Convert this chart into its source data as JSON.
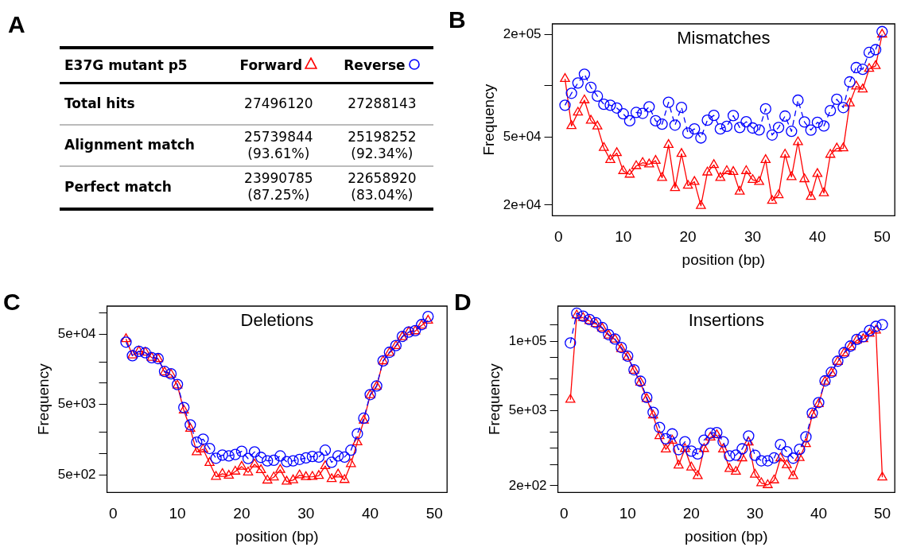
{
  "chart_data": [
    {
      "type": "other",
      "annotations": [
        "A",
        "E37G mutant p5",
        "Forward",
        "Reverse",
        "Total hits",
        "27496120",
        "27288143",
        "Alignment match",
        "25739844\n(93.61%)",
        "25198252\n(92.34%)",
        "Perfect match",
        "23990785\n(87.25%)",
        "22658920\n(83.04%)"
      ]
    },
    {
      "type": "line",
      "title": "Mismatches",
      "xlabel": "position (bp)",
      "ylabel": "Frequency",
      "annotations": [
        "B"
      ],
      "log": "y",
      "x": [
        1,
        2,
        3,
        4,
        5,
        6,
        7,
        8,
        9,
        10,
        11,
        12,
        13,
        14,
        15,
        16,
        17,
        18,
        19,
        20,
        21,
        22,
        23,
        24,
        25,
        26,
        27,
        28,
        29,
        30,
        31,
        32,
        33,
        34,
        35,
        36,
        37,
        38,
        39,
        40,
        41,
        42,
        43,
        44,
        45,
        46,
        47,
        48,
        49,
        50
      ],
      "xlim": [
        -0.96,
        51.96
      ],
      "xticks": [
        0,
        10,
        20,
        30,
        40,
        50
      ],
      "ylim": [
        17300,
        231000
      ],
      "yticks": [
        {
          "value": 20000,
          "label": "2e+04"
        },
        {
          "value": 50000,
          "label": "5e+04"
        },
        {
          "value": 100000,
          "label": null
        },
        {
          "value": 200000,
          "label": "2e+05"
        }
      ],
      "series": [
        {
          "color": "#0000ff",
          "marker": "circle",
          "line_style": "dashed",
          "values": [
            77000,
            90500,
            104000,
            117000,
            98000,
            87000,
            78000,
            77000,
            74200,
            68500,
            62400,
            69800,
            69000,
            75400,
            62400,
            59600,
            80100,
            58900,
            74800,
            52800,
            55900,
            49500,
            62900,
            67100,
            55900,
            57900,
            66900,
            57000,
            61600,
            56600,
            55200,
            73300,
            51500,
            57000,
            66500,
            54100,
            82400,
            61400,
            55000,
            61100,
            58200,
            71600,
            83400,
            74600,
            105500,
            128000,
            125000,
            157000,
            163000,
            208000
          ]
        },
        {
          "color": "#ff0000",
          "marker": "triangle",
          "line_style": "solid",
          "values": [
            110000,
            58200,
            69800,
            82400,
            62600,
            57900,
            43300,
            36800,
            40400,
            31700,
            30200,
            33900,
            35400,
            34700,
            36400,
            28900,
            45100,
            25200,
            40000,
            26000,
            27400,
            19800,
            31100,
            34400,
            28900,
            31700,
            31300,
            24000,
            31700,
            28100,
            27400,
            36800,
            21200,
            22900,
            39600,
            29200,
            46800,
            28400,
            22400,
            30500,
            23500,
            39500,
            43000,
            43100,
            79100,
            99300,
            95400,
            126000,
            131000,
            200000
          ]
        }
      ]
    },
    {
      "type": "line",
      "title": "Deletions",
      "xlabel": "position (bp)",
      "ylabel": "Frequency",
      "annotations": [
        "C"
      ],
      "log": "y",
      "x": [
        2,
        3,
        4,
        5,
        6,
        7,
        8,
        9,
        10,
        11,
        12,
        13,
        14,
        15,
        16,
        17,
        18,
        19,
        20,
        21,
        22,
        23,
        24,
        25,
        26,
        27,
        28,
        29,
        30,
        31,
        32,
        33,
        34,
        35,
        36,
        37,
        38,
        39,
        40,
        41,
        42,
        43,
        44,
        45,
        46,
        47,
        48,
        49
      ],
      "xlim": [
        -0.96,
        51.96
      ],
      "xticks": [
        0,
        10,
        20,
        30,
        40,
        50
      ],
      "ylim": [
        279,
        125000
      ],
      "yticks": [
        {
          "value": 500,
          "label": "5e+02"
        },
        {
          "value": 1000,
          "label": null
        },
        {
          "value": 2000,
          "label": null
        },
        {
          "value": 5000,
          "label": "5e+03"
        },
        {
          "value": 10000,
          "label": null
        },
        {
          "value": 20000,
          "label": null
        },
        {
          "value": 50000,
          "label": "5e+04"
        },
        {
          "value": 100000,
          "label": null
        }
      ],
      "series": [
        {
          "color": "#0000ff",
          "marker": "circle",
          "line_style": "dashed",
          "values": [
            38400,
            24600,
            28400,
            27100,
            23100,
            22400,
            14700,
            13600,
            9590,
            4510,
            2560,
            1450,
            1600,
            1180,
            857,
            950,
            923,
            968,
            1074,
            848,
            1054,
            881,
            787,
            802,
            923,
            764,
            787,
            824,
            865,
            906,
            889,
            1115,
            750,
            923,
            889,
            1115,
            1910,
            3180,
            6890,
            9150,
            20800,
            27600,
            34300,
            46400,
            53400,
            56000,
            68200,
            88900
          ]
        },
        {
          "color": "#ff0000",
          "marker": "triangle",
          "line_style": "solid",
          "values": [
            42600,
            24900,
            28400,
            27400,
            23100,
            22200,
            14300,
            13300,
            9310,
            4100,
            2260,
            1045,
            1150,
            736,
            468,
            514,
            486,
            555,
            651,
            540,
            702,
            582,
            414,
            459,
            587,
            399,
            418,
            491,
            464,
            468,
            482,
            664,
            434,
            505,
            422,
            710,
            1450,
            2950,
            6780,
            8980,
            20600,
            27100,
            33800,
            45500,
            53400,
            55000,
            66400,
            78000
          ]
        }
      ]
    },
    {
      "type": "line",
      "title": "Insertions",
      "xlabel": "position (bp)",
      "ylabel": "Frequency",
      "annotations": [
        "D"
      ],
      "log": "y",
      "x": [
        1,
        2,
        3,
        4,
        5,
        6,
        7,
        8,
        9,
        10,
        11,
        12,
        13,
        14,
        15,
        16,
        17,
        18,
        19,
        20,
        21,
        22,
        23,
        24,
        25,
        26,
        27,
        28,
        29,
        30,
        31,
        32,
        33,
        34,
        35,
        36,
        37,
        38,
        39,
        40,
        41,
        42,
        43,
        44,
        45,
        46,
        47,
        48,
        49,
        50
      ],
      "xlim": [
        -0.96,
        51.96
      ],
      "xticks": [
        0,
        10,
        20,
        30,
        40,
        50
      ],
      "ylim": [
        150,
        452000
      ],
      "yticks": [
        {
          "value": 200,
          "label": "2e+02"
        },
        {
          "value": 500,
          "label": null
        },
        {
          "value": 1000,
          "label": null
        },
        {
          "value": 2000,
          "label": null
        },
        {
          "value": 5000,
          "label": "5e+03"
        },
        {
          "value": 10000,
          "label": null
        },
        {
          "value": 20000,
          "label": null
        },
        {
          "value": 50000,
          "label": null
        },
        {
          "value": 100000,
          "label": "1e+05"
        },
        {
          "value": 200000,
          "label": null
        }
      ],
      "series": [
        {
          "color": "#0000ff",
          "marker": "circle",
          "line_style": "dashed",
          "values": [
            92900,
            333000,
            294000,
            254000,
            222000,
            180000,
            133000,
            110000,
            76300,
            52800,
            29300,
            17900,
            8910,
            4710,
            2460,
            1510,
            1860,
            946,
            1330,
            889,
            787,
            1420,
            1920,
            1970,
            1330,
            721,
            748,
            980,
            1700,
            740,
            586,
            586,
            662,
            1180,
            867,
            655,
            957,
            1640,
            4540,
            7160,
            18200,
            26300,
            42400,
            61200,
            81200,
            108000,
            122000,
            159000,
            189000,
            204000
          ]
        },
        {
          "color": "#ff0000",
          "marker": "triangle",
          "line_style": "solid",
          "values": [
            8090,
            305000,
            273000,
            239000,
            211000,
            174000,
            128000,
            108000,
            71800,
            50900,
            28300,
            16900,
            8390,
            4120,
            1700,
            957,
            1400,
            481,
            980,
            442,
            305,
            980,
            1600,
            1770,
            957,
            416,
            367,
            655,
            1290,
            325,
            225,
            207,
            254,
            655,
            487,
            305,
            662,
            1210,
            4270,
            6730,
            17700,
            25300,
            41300,
            59700,
            78200,
            104000,
            110000,
            138000,
            159000,
            288
          ]
        }
      ]
    }
  ]
}
